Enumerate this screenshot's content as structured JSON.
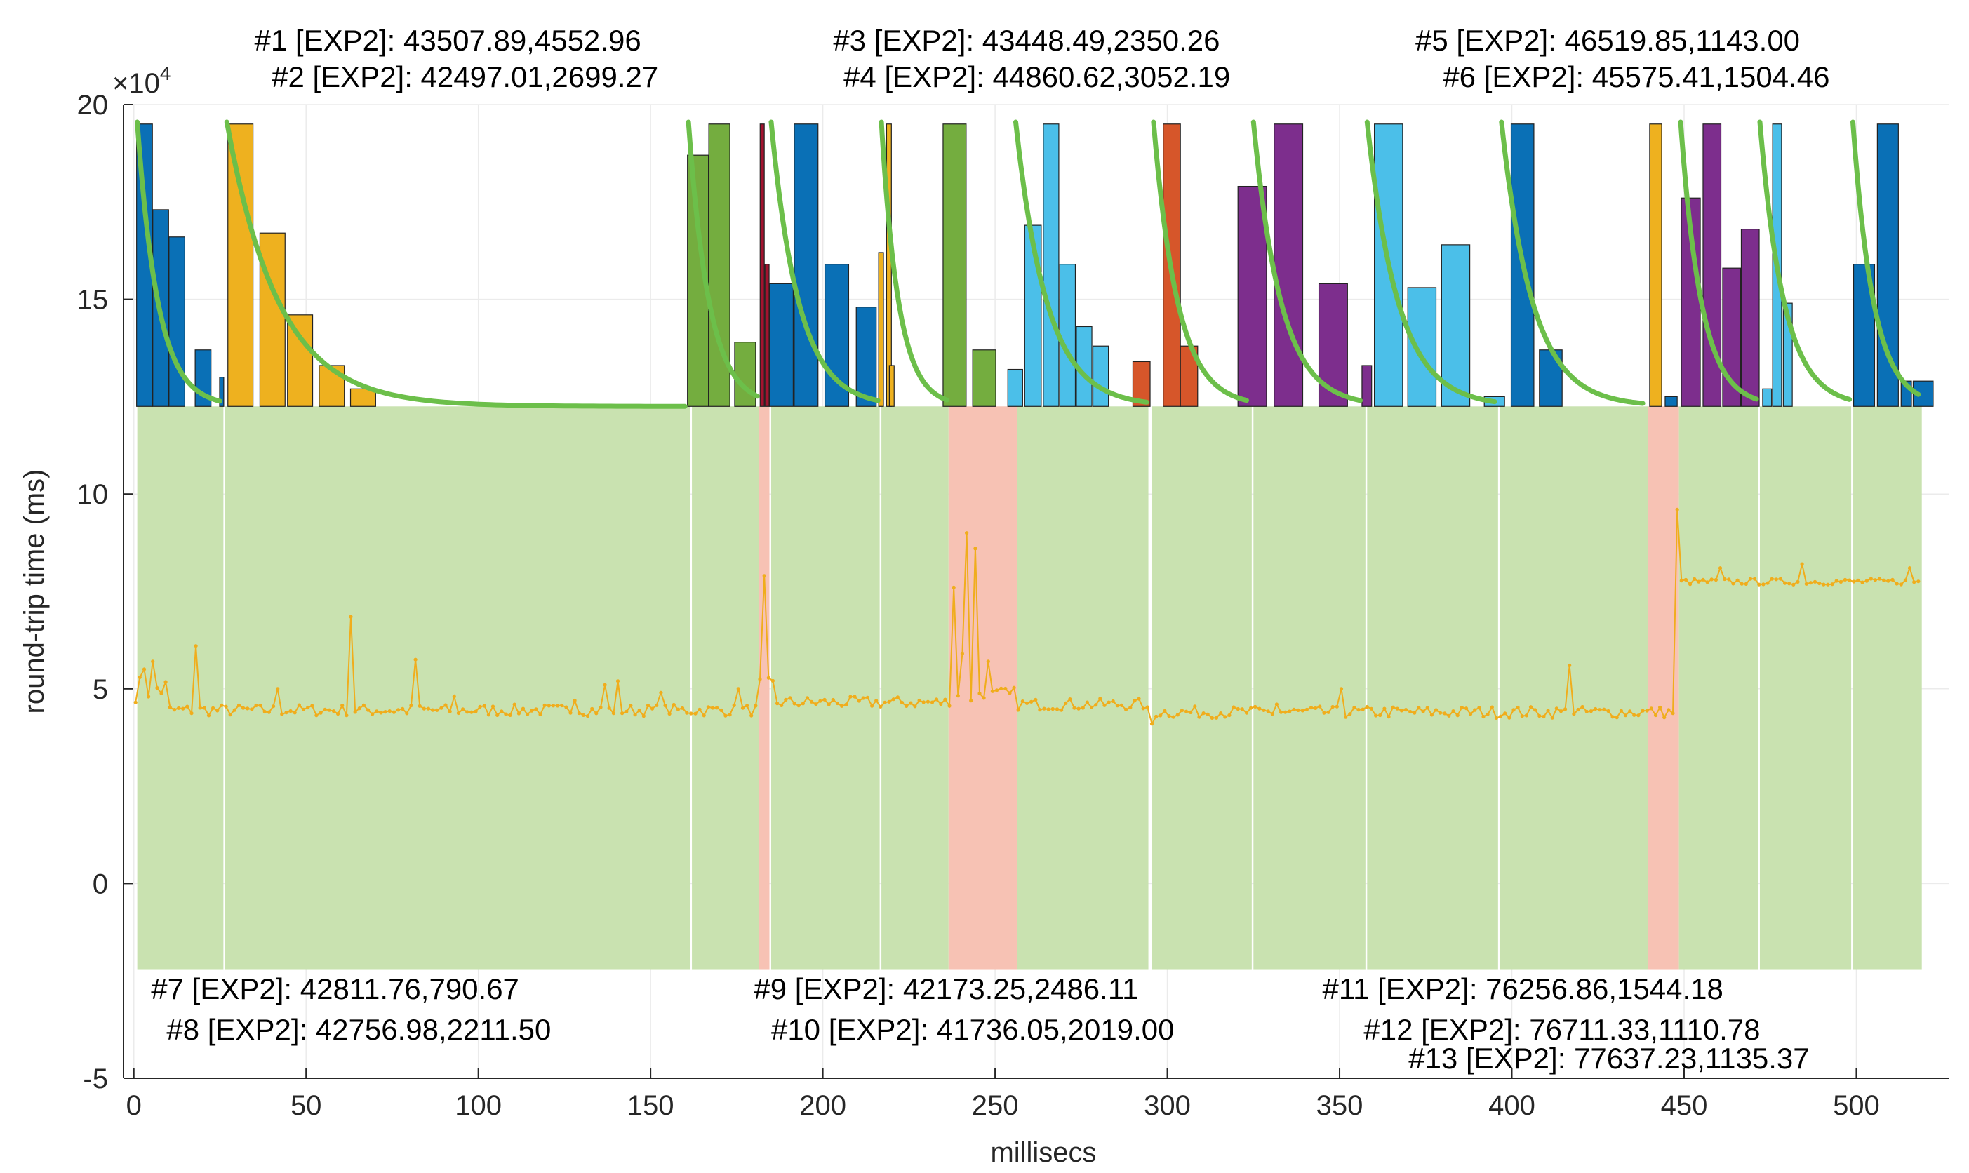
{
  "chart_data": {
    "type": "combined-bar-line",
    "xlabel": "millisecs",
    "ylabel": "round-trip time (ms)",
    "xlim": [
      -3,
      527
    ],
    "ylim": [
      -5,
      20
    ],
    "x_ticks": [
      0,
      50,
      100,
      150,
      200,
      250,
      300,
      350,
      400,
      450,
      500
    ],
    "y_ticks": [
      -5,
      0,
      5,
      10,
      15,
      20
    ],
    "y_tick_labels": [
      "-5",
      "0",
      "5",
      "10",
      "15",
      "20"
    ],
    "x_tick_labels": [
      "0",
      "50",
      "100",
      "150",
      "200",
      "250",
      "300",
      "350",
      "400",
      "450",
      "500"
    ],
    "y_exponent_label": "×10",
    "y_exponent_power": "4",
    "colors": {
      "good_band": "#c9e2b0",
      "bad_band": "#f7c2b4",
      "rtt_line": "#f0ad1c",
      "fit_curve": "#6cbf4a",
      "grid": "#ebebeb",
      "axis": "#262626",
      "bar_blue": "#0a70b6",
      "bar_yellow": "#eeb11f",
      "bar_green": "#74ad3f",
      "bar_purple": "#7d2e8d",
      "bar_lightblue": "#4bbfe9",
      "bar_orange": "#d6562a",
      "bar_darkred": "#a2132f"
    },
    "bands": [
      {
        "x0": 1,
        "x1": 26,
        "kind": "good"
      },
      {
        "x0": 26.5,
        "x1": 161.5,
        "kind": "good"
      },
      {
        "x0": 162,
        "x1": 181.5,
        "kind": "good"
      },
      {
        "x0": 181.5,
        "x1": 184.5,
        "kind": "bad"
      },
      {
        "x0": 185,
        "x1": 216.5,
        "kind": "good"
      },
      {
        "x0": 217,
        "x1": 236.5,
        "kind": "good"
      },
      {
        "x0": 236.5,
        "x1": 256.5,
        "kind": "bad"
      },
      {
        "x0": 256.5,
        "x1": 294.5,
        "kind": "good"
      },
      {
        "x0": 295.5,
        "x1": 324.5,
        "kind": "good"
      },
      {
        "x0": 325,
        "x1": 357.5,
        "kind": "good"
      },
      {
        "x0": 358,
        "x1": 396,
        "kind": "good"
      },
      {
        "x0": 396.5,
        "x1": 439.5,
        "kind": "good"
      },
      {
        "x0": 439.5,
        "x1": 448.5,
        "kind": "bad"
      },
      {
        "x0": 448.5,
        "x1": 471.5,
        "kind": "good"
      },
      {
        "x0": 472,
        "x1": 498.5,
        "kind": "good"
      },
      {
        "x0": 499,
        "x1": 519,
        "kind": "good"
      }
    ],
    "rtt_segments": [
      {
        "x0": 0.5,
        "x1": 10,
        "level": 5.0,
        "noise": 0.35
      },
      {
        "x0": 10,
        "x1": 181,
        "level": 4.45,
        "noise": 0.15
      },
      {
        "x0": 181,
        "x1": 186,
        "level": 5.1,
        "noise": 0.2
      },
      {
        "x0": 186,
        "x1": 236,
        "level": 4.65,
        "noise": 0.15
      },
      {
        "x0": 236,
        "x1": 256,
        "level": 4.8,
        "noise": 0.25
      },
      {
        "x0": 256,
        "x1": 294,
        "level": 4.6,
        "noise": 0.15
      },
      {
        "x0": 294,
        "x1": 447,
        "level": 4.4,
        "noise": 0.15
      },
      {
        "x0": 447,
        "x1": 519,
        "level": 7.75,
        "noise": 0.08
      }
    ],
    "rtt_spikes": [
      {
        "x": 3,
        "y": 5.5
      },
      {
        "x": 6,
        "y": 5.7
      },
      {
        "x": 18.5,
        "y": 6.1
      },
      {
        "x": 42,
        "y": 5.0
      },
      {
        "x": 63.5,
        "y": 6.85
      },
      {
        "x": 82,
        "y": 5.75
      },
      {
        "x": 93,
        "y": 4.8
      },
      {
        "x": 128,
        "y": 4.7
      },
      {
        "x": 137,
        "y": 5.1
      },
      {
        "x": 140,
        "y": 5.2
      },
      {
        "x": 153,
        "y": 4.9
      },
      {
        "x": 176,
        "y": 5.0
      },
      {
        "x": 182.5,
        "y": 7.9
      },
      {
        "x": 238,
        "y": 7.6
      },
      {
        "x": 240,
        "y": 5.9
      },
      {
        "x": 242,
        "y": 9.0
      },
      {
        "x": 244,
        "y": 8.6
      },
      {
        "x": 248,
        "y": 5.7
      },
      {
        "x": 295,
        "y": 4.1
      },
      {
        "x": 332,
        "y": 4.6
      },
      {
        "x": 351,
        "y": 5.0
      },
      {
        "x": 417,
        "y": 5.6
      },
      {
        "x": 447.5,
        "y": 9.6
      },
      {
        "x": 460,
        "y": 8.1
      },
      {
        "x": 484,
        "y": 8.2
      },
      {
        "x": 515,
        "y": 8.1
      }
    ],
    "bars": [
      {
        "x": 0.8,
        "w": 4.6,
        "top": 19.5,
        "color": "bar_blue"
      },
      {
        "x": 5.5,
        "w": 4.6,
        "top": 17.3,
        "color": "bar_blue"
      },
      {
        "x": 10.2,
        "w": 4.6,
        "top": 16.6,
        "color": "bar_blue"
      },
      {
        "x": 17.8,
        "w": 4.6,
        "top": 13.7,
        "color": "bar_blue"
      },
      {
        "x": 24.9,
        "w": 1.2,
        "top": 13.0,
        "color": "bar_blue"
      },
      {
        "x": 27.3,
        "w": 7.3,
        "top": 19.5,
        "color": "bar_yellow"
      },
      {
        "x": 36.6,
        "w": 7.3,
        "top": 16.7,
        "color": "bar_yellow"
      },
      {
        "x": 44.6,
        "w": 7.3,
        "top": 14.6,
        "color": "bar_yellow"
      },
      {
        "x": 53.8,
        "w": 7.3,
        "top": 13.3,
        "color": "bar_yellow"
      },
      {
        "x": 62.9,
        "w": 7.3,
        "top": 12.7,
        "color": "bar_yellow"
      },
      {
        "x": 160.7,
        "w": 6.1,
        "top": 18.7,
        "color": "bar_green"
      },
      {
        "x": 166.9,
        "w": 6.1,
        "top": 19.5,
        "color": "bar_green"
      },
      {
        "x": 174.4,
        "w": 6.1,
        "top": 13.9,
        "color": "bar_green"
      },
      {
        "x": 181.8,
        "w": 1.2,
        "top": 19.5,
        "color": "bar_darkred"
      },
      {
        "x": 183.2,
        "w": 1.2,
        "top": 15.9,
        "color": "bar_darkred"
      },
      {
        "x": 184.5,
        "w": 6.9,
        "top": 15.4,
        "color": "bar_blue"
      },
      {
        "x": 191.7,
        "w": 6.9,
        "top": 19.5,
        "color": "bar_blue"
      },
      {
        "x": 200.6,
        "w": 6.9,
        "top": 15.9,
        "color": "bar_blue"
      },
      {
        "x": 209.7,
        "w": 5.8,
        "top": 14.8,
        "color": "bar_blue"
      },
      {
        "x": 216.2,
        "w": 1.4,
        "top": 16.2,
        "color": "bar_yellow"
      },
      {
        "x": 218.5,
        "w": 1.4,
        "top": 19.5,
        "color": "bar_yellow"
      },
      {
        "x": 219.3,
        "w": 1.4,
        "top": 13.3,
        "color": "bar_yellow"
      },
      {
        "x": 234.9,
        "w": 6.7,
        "top": 19.5,
        "color": "bar_green"
      },
      {
        "x": 243.5,
        "w": 6.7,
        "top": 13.7,
        "color": "bar_green"
      },
      {
        "x": 253.7,
        "w": 4.3,
        "top": 13.2,
        "color": "bar_lightblue"
      },
      {
        "x": 258.6,
        "w": 4.8,
        "top": 16.9,
        "color": "bar_lightblue"
      },
      {
        "x": 264.0,
        "w": 4.5,
        "top": 19.5,
        "color": "bar_lightblue"
      },
      {
        "x": 268.8,
        "w": 4.5,
        "top": 15.9,
        "color": "bar_lightblue"
      },
      {
        "x": 273.6,
        "w": 4.5,
        "top": 14.3,
        "color": "bar_lightblue"
      },
      {
        "x": 278.4,
        "w": 4.5,
        "top": 13.8,
        "color": "bar_lightblue"
      },
      {
        "x": 290.0,
        "w": 5.0,
        "top": 13.4,
        "color": "bar_orange"
      },
      {
        "x": 298.8,
        "w": 5.0,
        "top": 19.5,
        "color": "bar_orange"
      },
      {
        "x": 303.8,
        "w": 5.0,
        "top": 13.8,
        "color": "bar_orange"
      },
      {
        "x": 320.5,
        "w": 8.3,
        "top": 17.9,
        "color": "bar_purple"
      },
      {
        "x": 331.0,
        "w": 8.3,
        "top": 19.5,
        "color": "bar_purple"
      },
      {
        "x": 344.0,
        "w": 8.3,
        "top": 15.4,
        "color": "bar_purple"
      },
      {
        "x": 356.5,
        "w": 2.8,
        "top": 13.3,
        "color": "bar_purple"
      },
      {
        "x": 360.1,
        "w": 8.2,
        "top": 19.5,
        "color": "bar_lightblue"
      },
      {
        "x": 369.8,
        "w": 8.2,
        "top": 15.3,
        "color": "bar_lightblue"
      },
      {
        "x": 379.6,
        "w": 8.2,
        "top": 16.4,
        "color": "bar_lightblue"
      },
      {
        "x": 392.0,
        "w": 5.9,
        "top": 12.5,
        "color": "bar_lightblue"
      },
      {
        "x": 399.8,
        "w": 6.6,
        "top": 19.5,
        "color": "bar_blue"
      },
      {
        "x": 408.0,
        "w": 6.6,
        "top": 13.7,
        "color": "bar_blue"
      },
      {
        "x": 440.0,
        "w": 3.5,
        "top": 19.5,
        "color": "bar_yellow"
      },
      {
        "x": 444.5,
        "w": 3.5,
        "top": 12.5,
        "color": "bar_blue"
      },
      {
        "x": 449.2,
        "w": 5.5,
        "top": 17.6,
        "color": "bar_purple"
      },
      {
        "x": 455.5,
        "w": 5.2,
        "top": 19.5,
        "color": "bar_purple"
      },
      {
        "x": 461.2,
        "w": 5.2,
        "top": 15.8,
        "color": "bar_purple"
      },
      {
        "x": 466.6,
        "w": 5.2,
        "top": 16.8,
        "color": "bar_purple"
      },
      {
        "x": 472.8,
        "w": 2.6,
        "top": 12.7,
        "color": "bar_lightblue"
      },
      {
        "x": 475.7,
        "w": 2.6,
        "top": 19.5,
        "color": "bar_lightblue"
      },
      {
        "x": 478.8,
        "w": 2.6,
        "top": 14.9,
        "color": "bar_lightblue"
      },
      {
        "x": 499.2,
        "w": 6.1,
        "top": 15.9,
        "color": "bar_blue"
      },
      {
        "x": 506.1,
        "w": 6.1,
        "top": 19.5,
        "color": "bar_blue"
      },
      {
        "x": 513.0,
        "w": 3.0,
        "top": 12.9,
        "color": "bar_blue"
      },
      {
        "x": 516.5,
        "w": 5.8,
        "top": 12.9,
        "color": "bar_blue"
      }
    ],
    "fit_curves": [
      {
        "x0": 1,
        "x1": 25,
        "a": 7.3,
        "tau": 6
      },
      {
        "x0": 27,
        "x1": 160,
        "a": 7.3,
        "tau": 15
      },
      {
        "x0": 161,
        "x1": 181,
        "a": 7.3,
        "tau": 6
      },
      {
        "x0": 185,
        "x1": 216,
        "a": 7.3,
        "tau": 8
      },
      {
        "x0": 217,
        "x1": 236,
        "a": 7.3,
        "tau": 5
      },
      {
        "x0": 256,
        "x1": 294,
        "a": 7.3,
        "tau": 9
      },
      {
        "x0": 296,
        "x1": 323,
        "a": 7.3,
        "tau": 7
      },
      {
        "x0": 325,
        "x1": 356,
        "a": 7.3,
        "tau": 8
      },
      {
        "x0": 358,
        "x1": 395,
        "a": 7.3,
        "tau": 9
      },
      {
        "x0": 397,
        "x1": 438,
        "a": 7.3,
        "tau": 9
      },
      {
        "x0": 449,
        "x1": 471,
        "a": 7.3,
        "tau": 6
      },
      {
        "x0": 472,
        "x1": 498,
        "a": 7.3,
        "tau": 7
      },
      {
        "x0": 499,
        "x1": 518,
        "a": 7.3,
        "tau": 6
      }
    ],
    "fit_baseline": 12.25,
    "fit_top": 19.55,
    "annotations_top": [
      {
        "text": "#1 [EXP2]: 43507.89,4552.96",
        "x_data": 35,
        "row": 1
      },
      {
        "text": "#2 [EXP2]: 42497.01,2699.27",
        "x_data": 40,
        "row": 2
      },
      {
        "text": "#3 [EXP2]: 43448.49,2350.26",
        "x_data": 203,
        "row": 1
      },
      {
        "text": "#4 [EXP2]: 44860.62,3052.19",
        "x_data": 206,
        "row": 2
      },
      {
        "text": "#5 [EXP2]: 46519.85,1143.00",
        "x_data": 372,
        "row": 1
      },
      {
        "text": "#6 [EXP2]: 45575.41,1504.46",
        "x_data": 380,
        "row": 2
      }
    ],
    "annotations_bottom": [
      {
        "text": "#7 [EXP2]: 42811.76,790.67",
        "x_data": 5,
        "row": 1
      },
      {
        "text": "#8 [EXP2]: 42756.98,2211.50",
        "x_data": 9.5,
        "row": 2
      },
      {
        "text": "#9 [EXP2]: 42173.25,2486.11",
        "x_data": 180,
        "row": 1
      },
      {
        "text": "#10 [EXP2]: 41736.05,2019.00",
        "x_data": 185,
        "row": 2
      },
      {
        "text": "#11 [EXP2]: 76256.86,1544.18",
        "x_data": 345,
        "row": 1
      },
      {
        "text": "#12 [EXP2]: 76711.33,1110.78",
        "x_data": 357,
        "row": 2
      },
      {
        "text": "#13 [EXP2]: 77637.23,1135.37",
        "x_data": 370,
        "row": 3
      }
    ]
  }
}
